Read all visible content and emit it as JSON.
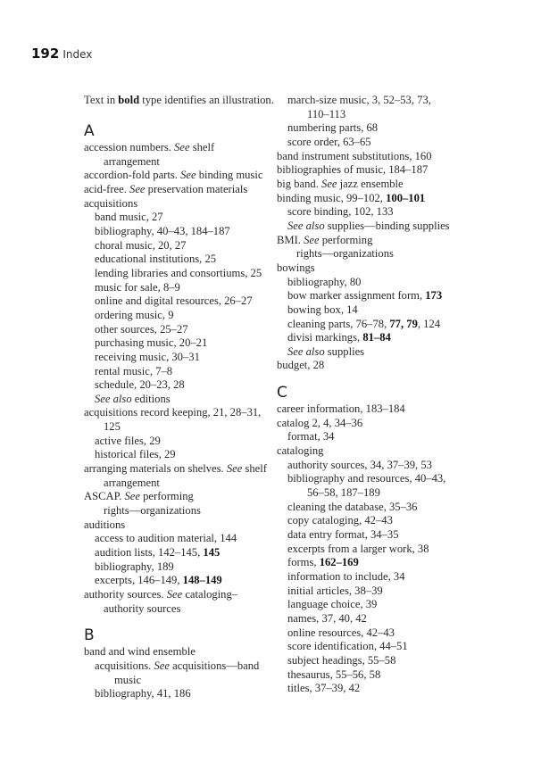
{
  "running_head": {
    "page_number": "192",
    "title": "Index"
  },
  "intro": [
    [
      "Text in ",
      ""
    ],
    [
      "bold",
      "b"
    ],
    [
      " type identifies an illustration.",
      ""
    ]
  ],
  "columns": [
    {
      "sections": [
        {
          "heading": "A",
          "lines": [
            {
              "k": "main",
              "segs": [
                [
                  "accession numbers. ",
                  ""
                ],
                [
                  "See",
                  "i"
                ],
                [
                  " shelf",
                  ""
                ]
              ]
            },
            {
              "k": "cont",
              "segs": [
                [
                  "arrangement",
                  ""
                ]
              ]
            },
            {
              "k": "main",
              "segs": [
                [
                  "accordion-fold parts. ",
                  ""
                ],
                [
                  "See",
                  "i"
                ],
                [
                  " binding music",
                  ""
                ]
              ]
            },
            {
              "k": "main",
              "segs": [
                [
                  "acid-free. ",
                  ""
                ],
                [
                  "See",
                  "i"
                ],
                [
                  " preservation materials",
                  ""
                ]
              ]
            },
            {
              "k": "main",
              "segs": [
                [
                  "acquisitions",
                  ""
                ]
              ]
            },
            {
              "k": "sub",
              "segs": [
                [
                  "band music, 27",
                  ""
                ]
              ]
            },
            {
              "k": "sub",
              "segs": [
                [
                  "bibliography, 40–43, 184–187",
                  ""
                ]
              ]
            },
            {
              "k": "sub",
              "segs": [
                [
                  "choral music, 20, 27",
                  ""
                ]
              ]
            },
            {
              "k": "sub",
              "segs": [
                [
                  "educational institutions, 25",
                  ""
                ]
              ]
            },
            {
              "k": "sub",
              "segs": [
                [
                  "lending libraries and consortiums, 25",
                  ""
                ]
              ]
            },
            {
              "k": "sub",
              "segs": [
                [
                  "music for sale, 8–9",
                  ""
                ]
              ]
            },
            {
              "k": "sub",
              "segs": [
                [
                  "online and digital resources, 26–27",
                  ""
                ]
              ]
            },
            {
              "k": "sub",
              "segs": [
                [
                  "ordering music, 9",
                  ""
                ]
              ]
            },
            {
              "k": "sub",
              "segs": [
                [
                  "other sources, 25–27",
                  ""
                ]
              ]
            },
            {
              "k": "sub",
              "segs": [
                [
                  "purchasing music, 20–21",
                  ""
                ]
              ]
            },
            {
              "k": "sub",
              "segs": [
                [
                  "receiving music, 30–31",
                  ""
                ]
              ]
            },
            {
              "k": "sub",
              "segs": [
                [
                  "rental music, 7–8",
                  ""
                ]
              ]
            },
            {
              "k": "sub",
              "segs": [
                [
                  "schedule, 20–23, 28",
                  ""
                ]
              ]
            },
            {
              "k": "sub",
              "segs": [
                [
                  "See also",
                  "i"
                ],
                [
                  " editions",
                  ""
                ]
              ]
            },
            {
              "k": "main",
              "segs": [
                [
                  "acquisitions record keeping, 21, 28–31,",
                  ""
                ]
              ]
            },
            {
              "k": "cont",
              "segs": [
                [
                  "125",
                  ""
                ]
              ]
            },
            {
              "k": "sub",
              "segs": [
                [
                  "active files, 29",
                  ""
                ]
              ]
            },
            {
              "k": "sub",
              "segs": [
                [
                  "historical files, 29",
                  ""
                ]
              ]
            },
            {
              "k": "main",
              "segs": [
                [
                  "arranging materials on shelves. ",
                  ""
                ],
                [
                  "See",
                  "i"
                ],
                [
                  " shelf",
                  ""
                ]
              ]
            },
            {
              "k": "cont",
              "segs": [
                [
                  "arrangement",
                  ""
                ]
              ]
            },
            {
              "k": "main",
              "segs": [
                [
                  "ASCAP. ",
                  ""
                ],
                [
                  "See",
                  "i"
                ],
                [
                  " performing",
                  ""
                ]
              ]
            },
            {
              "k": "cont",
              "segs": [
                [
                  "rights—organizations",
                  ""
                ]
              ]
            },
            {
              "k": "main",
              "segs": [
                [
                  "auditions",
                  ""
                ]
              ]
            },
            {
              "k": "sub",
              "segs": [
                [
                  "access to audition material, 144",
                  ""
                ]
              ]
            },
            {
              "k": "sub",
              "segs": [
                [
                  "audition lists, 142–145, ",
                  ""
                ],
                [
                  "145",
                  "b"
                ]
              ]
            },
            {
              "k": "sub",
              "segs": [
                [
                  "bibliography, 189",
                  ""
                ]
              ]
            },
            {
              "k": "sub",
              "segs": [
                [
                  "excerpts, 146–149, ",
                  ""
                ],
                [
                  "148–149",
                  "b"
                ]
              ]
            },
            {
              "k": "main",
              "segs": [
                [
                  "authority sources. ",
                  ""
                ],
                [
                  "See",
                  "i"
                ],
                [
                  " cataloging–",
                  ""
                ]
              ]
            },
            {
              "k": "cont",
              "segs": [
                [
                  "authority sources",
                  ""
                ]
              ]
            }
          ]
        },
        {
          "heading": "B",
          "lines": [
            {
              "k": "main",
              "segs": [
                [
                  "band and wind ensemble",
                  ""
                ]
              ]
            },
            {
              "k": "sub",
              "segs": [
                [
                  "acquisitions. ",
                  ""
                ],
                [
                  "See",
                  "i"
                ],
                [
                  " acquisitions—band",
                  ""
                ]
              ]
            },
            {
              "k": "subcont",
              "segs": [
                [
                  "music",
                  ""
                ]
              ]
            },
            {
              "k": "sub",
              "segs": [
                [
                  "bibliography, 41, 186",
                  ""
                ]
              ]
            }
          ]
        }
      ]
    },
    {
      "sections": [
        {
          "heading": "",
          "lines": [
            {
              "k": "sub",
              "segs": [
                [
                  "march-size music, 3, 52–53, 73,",
                  ""
                ]
              ]
            },
            {
              "k": "subcont",
              "segs": [
                [
                  "110–113",
                  ""
                ]
              ]
            },
            {
              "k": "sub",
              "segs": [
                [
                  "numbering parts, 68",
                  ""
                ]
              ]
            },
            {
              "k": "sub",
              "segs": [
                [
                  "score order, 63–65",
                  ""
                ]
              ]
            },
            {
              "k": "main",
              "segs": [
                [
                  "band instrument substitutions, 160",
                  ""
                ]
              ]
            },
            {
              "k": "main",
              "segs": [
                [
                  "bibliographies of music, 184–187",
                  ""
                ]
              ]
            },
            {
              "k": "main",
              "segs": [
                [
                  "big band. ",
                  ""
                ],
                [
                  "See",
                  "i"
                ],
                [
                  " jazz ensemble",
                  ""
                ]
              ]
            },
            {
              "k": "main",
              "segs": [
                [
                  "binding music, 99–102, ",
                  ""
                ],
                [
                  "100–101",
                  "b"
                ]
              ]
            },
            {
              "k": "sub",
              "segs": [
                [
                  "score binding, 102, 133",
                  ""
                ]
              ]
            },
            {
              "k": "sub",
              "segs": [
                [
                  "See also",
                  "i"
                ],
                [
                  " supplies—binding supplies",
                  ""
                ]
              ]
            },
            {
              "k": "main",
              "segs": [
                [
                  "BMI. ",
                  ""
                ],
                [
                  "See",
                  "i"
                ],
                [
                  " performing",
                  ""
                ]
              ]
            },
            {
              "k": "cont",
              "segs": [
                [
                  "rights—organizations",
                  ""
                ]
              ]
            },
            {
              "k": "main",
              "segs": [
                [
                  "bowings",
                  ""
                ]
              ]
            },
            {
              "k": "sub",
              "segs": [
                [
                  "bibliography, 80",
                  ""
                ]
              ]
            },
            {
              "k": "sub",
              "segs": [
                [
                  "bow marker assignment form, ",
                  ""
                ],
                [
                  "173",
                  "b"
                ]
              ]
            },
            {
              "k": "sub",
              "segs": [
                [
                  "bowing box, 14",
                  ""
                ]
              ]
            },
            {
              "k": "sub",
              "segs": [
                [
                  "cleaning parts, 76–78, ",
                  ""
                ],
                [
                  "77, 79",
                  "b"
                ],
                [
                  ", 124",
                  ""
                ]
              ]
            },
            {
              "k": "sub",
              "segs": [
                [
                  "divisi markings, ",
                  ""
                ],
                [
                  "81–84",
                  "b"
                ]
              ]
            },
            {
              "k": "sub",
              "segs": [
                [
                  "See also",
                  "i"
                ],
                [
                  " supplies",
                  ""
                ]
              ]
            },
            {
              "k": "main",
              "segs": [
                [
                  "budget, 28",
                  ""
                ]
              ]
            }
          ]
        },
        {
          "heading": "C",
          "lines": [
            {
              "k": "main",
              "segs": [
                [
                  "career information, 183–184",
                  ""
                ]
              ]
            },
            {
              "k": "main",
              "segs": [
                [
                  "catalog 2, 4, 34–36",
                  ""
                ]
              ]
            },
            {
              "k": "sub",
              "segs": [
                [
                  "format, 34",
                  ""
                ]
              ]
            },
            {
              "k": "main",
              "segs": [
                [
                  "cataloging",
                  ""
                ]
              ]
            },
            {
              "k": "sub",
              "segs": [
                [
                  "authority sources, 34, 37–39, 53",
                  ""
                ]
              ]
            },
            {
              "k": "sub",
              "segs": [
                [
                  "bibliography and resources, 40–43,",
                  ""
                ]
              ]
            },
            {
              "k": "subcont",
              "segs": [
                [
                  "56–58, 187–189",
                  ""
                ]
              ]
            },
            {
              "k": "sub",
              "segs": [
                [
                  "cleaning the database, 35–36",
                  ""
                ]
              ]
            },
            {
              "k": "sub",
              "segs": [
                [
                  "copy cataloging, 42–43",
                  ""
                ]
              ]
            },
            {
              "k": "sub",
              "segs": [
                [
                  "data entry format, 34–35",
                  ""
                ]
              ]
            },
            {
              "k": "sub",
              "segs": [
                [
                  "excerpts from a larger work, 38",
                  ""
                ]
              ]
            },
            {
              "k": "sub",
              "segs": [
                [
                  "forms, ",
                  ""
                ],
                [
                  "162–169",
                  "b"
                ]
              ]
            },
            {
              "k": "sub",
              "segs": [
                [
                  "information to include, 34",
                  ""
                ]
              ]
            },
            {
              "k": "sub",
              "segs": [
                [
                  "initial articles, 38–39",
                  ""
                ]
              ]
            },
            {
              "k": "sub",
              "segs": [
                [
                  "language choice, 39",
                  ""
                ]
              ]
            },
            {
              "k": "sub",
              "segs": [
                [
                  "names, 37, 40, 42",
                  ""
                ]
              ]
            },
            {
              "k": "sub",
              "segs": [
                [
                  "online resources, 42–43",
                  ""
                ]
              ]
            },
            {
              "k": "sub",
              "segs": [
                [
                  "score identification, 44–51",
                  ""
                ]
              ]
            },
            {
              "k": "sub",
              "segs": [
                [
                  "subject headings, 55–58",
                  ""
                ]
              ]
            },
            {
              "k": "sub",
              "segs": [
                [
                  "thesaurus, 55–56, 58",
                  ""
                ]
              ]
            },
            {
              "k": "sub",
              "segs": [
                [
                  "titles, 37–39, 42",
                  ""
                ]
              ]
            }
          ]
        }
      ]
    }
  ]
}
